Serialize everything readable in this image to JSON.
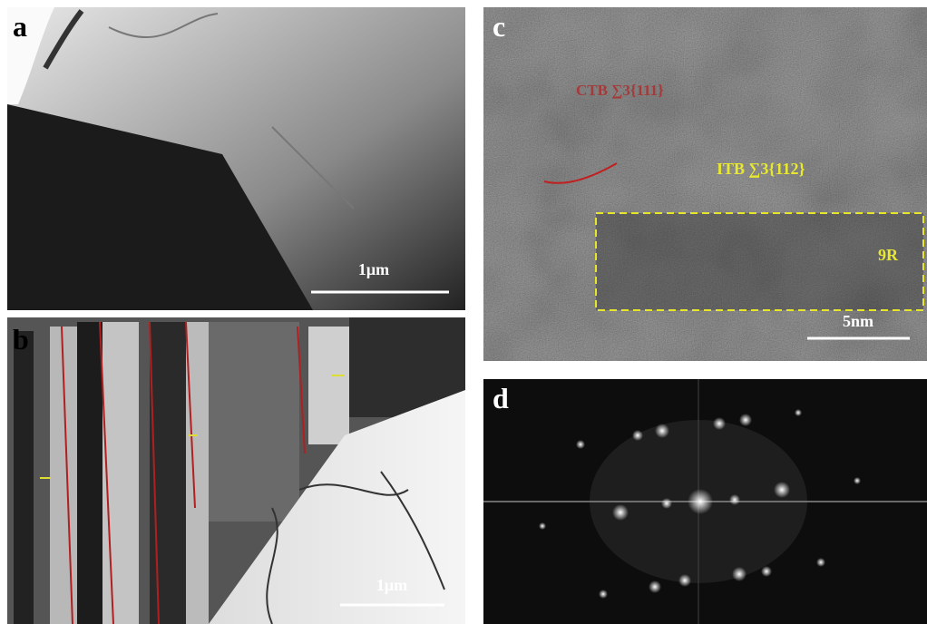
{
  "panels": [
    {
      "label": "a",
      "scale_bar": "1μm"
    },
    {
      "label": "b",
      "scale_bar": "1μm"
    },
    {
      "label": "c",
      "scale_bar": "5nm",
      "annotations": [
        "CTB ∑3{111}",
        "ITB ∑3{112}",
        "9R"
      ]
    },
    {
      "label": "d"
    }
  ]
}
